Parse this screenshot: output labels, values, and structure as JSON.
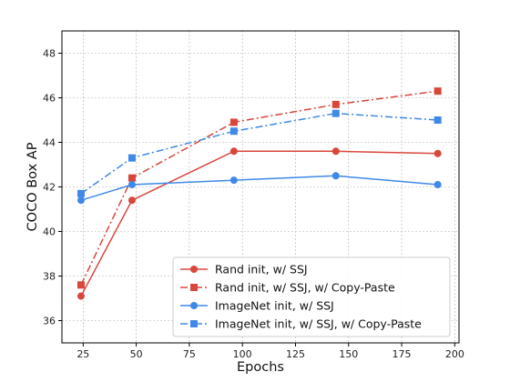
{
  "chart_data": {
    "type": "line",
    "xlabel": "Epochs",
    "ylabel": "COCO Box AP",
    "xlim": [
      15,
      202
    ],
    "ylim": [
      35,
      49
    ],
    "xticks": [
      25,
      50,
      75,
      100,
      125,
      150,
      175,
      200
    ],
    "yticks": [
      36,
      38,
      40,
      42,
      44,
      46,
      48
    ],
    "grid": true,
    "legend_position": "lower-right",
    "x": [
      24,
      48,
      96,
      144,
      192
    ],
    "series": [
      {
        "name": "Rand init, w/ SSJ",
        "values": [
          37.1,
          41.4,
          43.6,
          43.6,
          43.5
        ],
        "color": "#d9463b",
        "marker": "circle",
        "linestyle": "solid"
      },
      {
        "name": "Rand init, w/ SSJ, w/ Copy-Paste",
        "values": [
          37.6,
          42.4,
          44.9,
          45.7,
          46.3
        ],
        "color": "#d9463b",
        "marker": "square",
        "linestyle": "dashdot"
      },
      {
        "name": "ImageNet init, w/ SSJ",
        "values": [
          41.4,
          42.1,
          42.3,
          42.5,
          42.1
        ],
        "color": "#3f88e8",
        "marker": "circle",
        "linestyle": "solid"
      },
      {
        "name": "ImageNet init, w/ SSJ, w/ Copy-Paste",
        "values": [
          41.7,
          43.3,
          44.5,
          45.3,
          45.0
        ],
        "color": "#3f88e8",
        "marker": "square",
        "linestyle": "dashdot"
      }
    ]
  }
}
